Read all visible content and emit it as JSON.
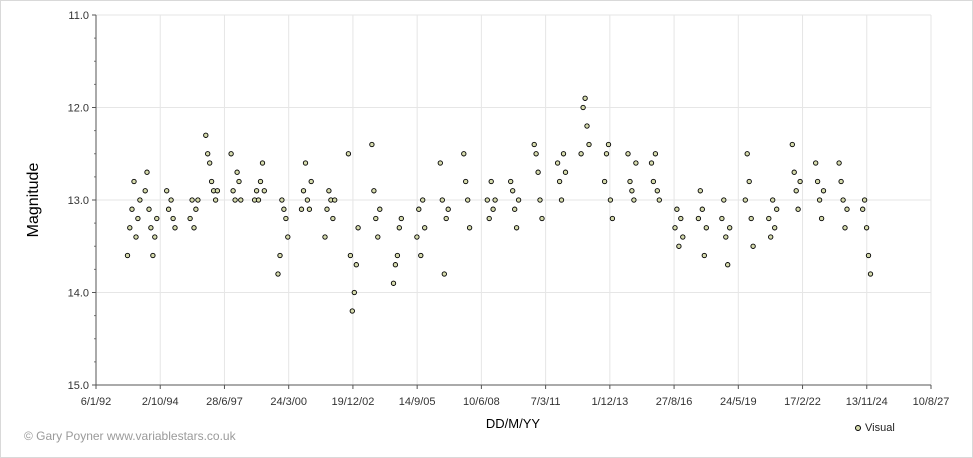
{
  "copyright": "© Gary Poyner www.variablestars.co.uk",
  "chart_data": {
    "type": "scatter",
    "title": "",
    "xlabel": "DD/M/YY",
    "ylabel": "Magnitude",
    "y_inverted": true,
    "ylim": [
      11.0,
      15.0
    ],
    "xlim": [
      "6/1/92",
      "10/8/27"
    ],
    "xticks": [
      "6/1/92",
      "2/10/94",
      "28/6/97",
      "24/3/00",
      "19/12/02",
      "14/9/05",
      "10/6/08",
      "7/3/11",
      "1/12/13",
      "27/8/16",
      "24/5/19",
      "17/2/22",
      "13/11/24",
      "10/8/27"
    ],
    "yticks": [
      "11.0",
      "12.0",
      "13.0",
      "14.0",
      "15.0"
    ],
    "grid": true,
    "legend_position": "bottom-right",
    "marker_color": "#d7dcae",
    "series": [
      {
        "name": "Visual",
        "points": [
          {
            "x": "1993-05-10",
            "y": 13.6
          },
          {
            "x": "1993-06-15",
            "y": 13.3
          },
          {
            "x": "1993-07-20",
            "y": 13.1
          },
          {
            "x": "1993-08-20",
            "y": 12.8
          },
          {
            "x": "1993-09-20",
            "y": 13.4
          },
          {
            "x": "1993-10-20",
            "y": 13.2
          },
          {
            "x": "1993-11-20",
            "y": 13.0
          },
          {
            "x": "1994-02-10",
            "y": 12.9
          },
          {
            "x": "1994-03-10",
            "y": 12.7
          },
          {
            "x": "1994-04-10",
            "y": 13.1
          },
          {
            "x": "1994-05-10",
            "y": 13.3
          },
          {
            "x": "1994-06-10",
            "y": 13.6
          },
          {
            "x": "1994-07-10",
            "y": 13.4
          },
          {
            "x": "1994-08-10",
            "y": 13.2
          },
          {
            "x": "1995-01-10",
            "y": 12.9
          },
          {
            "x": "1995-02-10",
            "y": 13.1
          },
          {
            "x": "1995-03-20",
            "y": 13.0
          },
          {
            "x": "1995-04-20",
            "y": 13.2
          },
          {
            "x": "1995-05-20",
            "y": 13.3
          },
          {
            "x": "1996-01-10",
            "y": 13.2
          },
          {
            "x": "1996-02-10",
            "y": 13.0
          },
          {
            "x": "1996-03-10",
            "y": 13.3
          },
          {
            "x": "1996-04-10",
            "y": 13.1
          },
          {
            "x": "1996-05-10",
            "y": 13.0
          },
          {
            "x": "1996-09-10",
            "y": 12.3
          },
          {
            "x": "1996-10-10",
            "y": 12.5
          },
          {
            "x": "1996-11-10",
            "y": 12.6
          },
          {
            "x": "1996-12-10",
            "y": 12.8
          },
          {
            "x": "1997-01-10",
            "y": 12.9
          },
          {
            "x": "1997-02-10",
            "y": 13.0
          },
          {
            "x": "1997-03-10",
            "y": 12.9
          },
          {
            "x": "1997-10-10",
            "y": 12.5
          },
          {
            "x": "1997-11-10",
            "y": 12.9
          },
          {
            "x": "1997-12-10",
            "y": 13.0
          },
          {
            "x": "1998-01-10",
            "y": 12.7
          },
          {
            "x": "1998-02-10",
            "y": 12.8
          },
          {
            "x": "1998-03-10",
            "y": 13.0
          },
          {
            "x": "1998-10-10",
            "y": 13.0
          },
          {
            "x": "1998-11-10",
            "y": 12.9
          },
          {
            "x": "1998-12-10",
            "y": 13.0
          },
          {
            "x": "1999-01-10",
            "y": 12.8
          },
          {
            "x": "1999-02-10",
            "y": 12.6
          },
          {
            "x": "1999-03-10",
            "y": 12.9
          },
          {
            "x": "1999-10-10",
            "y": 13.8
          },
          {
            "x": "1999-11-10",
            "y": 13.6
          },
          {
            "x": "1999-12-10",
            "y": 13.0
          },
          {
            "x": "2000-01-10",
            "y": 13.1
          },
          {
            "x": "2000-02-10",
            "y": 13.2
          },
          {
            "x": "2000-03-10",
            "y": 13.4
          },
          {
            "x": "2000-10-10",
            "y": 13.1
          },
          {
            "x": "2000-11-10",
            "y": 12.9
          },
          {
            "x": "2000-12-10",
            "y": 12.6
          },
          {
            "x": "2001-01-10",
            "y": 13.0
          },
          {
            "x": "2001-02-10",
            "y": 13.1
          },
          {
            "x": "2001-03-10",
            "y": 12.8
          },
          {
            "x": "2001-10-10",
            "y": 13.4
          },
          {
            "x": "2001-11-10",
            "y": 13.1
          },
          {
            "x": "2001-12-10",
            "y": 12.9
          },
          {
            "x": "2002-01-10",
            "y": 13.0
          },
          {
            "x": "2002-02-10",
            "y": 13.2
          },
          {
            "x": "2002-03-10",
            "y": 13.0
          },
          {
            "x": "2002-10-10",
            "y": 12.5
          },
          {
            "x": "2002-11-10",
            "y": 13.6
          },
          {
            "x": "2002-12-10",
            "y": 14.2
          },
          {
            "x": "2003-01-10",
            "y": 14.0
          },
          {
            "x": "2003-02-10",
            "y": 13.7
          },
          {
            "x": "2003-03-10",
            "y": 13.3
          },
          {
            "x": "2003-10-10",
            "y": 12.4
          },
          {
            "x": "2003-11-10",
            "y": 12.9
          },
          {
            "x": "2003-12-10",
            "y": 13.2
          },
          {
            "x": "2004-01-10",
            "y": 13.4
          },
          {
            "x": "2004-02-10",
            "y": 13.1
          },
          {
            "x": "2004-09-10",
            "y": 13.9
          },
          {
            "x": "2004-10-10",
            "y": 13.7
          },
          {
            "x": "2004-11-10",
            "y": 13.6
          },
          {
            "x": "2004-12-10",
            "y": 13.3
          },
          {
            "x": "2005-01-10",
            "y": 13.2
          },
          {
            "x": "2005-09-10",
            "y": 13.4
          },
          {
            "x": "2005-10-10",
            "y": 13.1
          },
          {
            "x": "2005-11-10",
            "y": 13.6
          },
          {
            "x": "2005-12-10",
            "y": 13.0
          },
          {
            "x": "2006-01-10",
            "y": 13.3
          },
          {
            "x": "2006-09-10",
            "y": 12.6
          },
          {
            "x": "2006-10-10",
            "y": 13.0
          },
          {
            "x": "2006-11-10",
            "y": 13.8
          },
          {
            "x": "2006-12-10",
            "y": 13.2
          },
          {
            "x": "2007-01-10",
            "y": 13.1
          },
          {
            "x": "2007-09-10",
            "y": 12.5
          },
          {
            "x": "2007-10-10",
            "y": 12.8
          },
          {
            "x": "2007-11-10",
            "y": 13.0
          },
          {
            "x": "2007-12-10",
            "y": 13.3
          },
          {
            "x": "2008-09-10",
            "y": 13.0
          },
          {
            "x": "2008-10-10",
            "y": 13.2
          },
          {
            "x": "2008-11-10",
            "y": 12.8
          },
          {
            "x": "2008-12-10",
            "y": 13.1
          },
          {
            "x": "2009-01-10",
            "y": 13.0
          },
          {
            "x": "2009-09-10",
            "y": 12.8
          },
          {
            "x": "2009-10-10",
            "y": 12.9
          },
          {
            "x": "2009-11-10",
            "y": 13.1
          },
          {
            "x": "2009-12-10",
            "y": 13.3
          },
          {
            "x": "2010-01-10",
            "y": 13.0
          },
          {
            "x": "2010-09-10",
            "y": 12.4
          },
          {
            "x": "2010-10-10",
            "y": 12.5
          },
          {
            "x": "2010-11-10",
            "y": 12.7
          },
          {
            "x": "2010-12-10",
            "y": 13.0
          },
          {
            "x": "2011-01-10",
            "y": 13.2
          },
          {
            "x": "2011-09-10",
            "y": 12.6
          },
          {
            "x": "2011-10-10",
            "y": 12.8
          },
          {
            "x": "2011-11-10",
            "y": 13.0
          },
          {
            "x": "2011-12-10",
            "y": 12.5
          },
          {
            "x": "2012-01-10",
            "y": 12.7
          },
          {
            "x": "2012-09-10",
            "y": 12.5
          },
          {
            "x": "2012-10-10",
            "y": 12.0
          },
          {
            "x": "2012-11-10",
            "y": 11.9
          },
          {
            "x": "2012-12-10",
            "y": 12.2
          },
          {
            "x": "2013-01-10",
            "y": 12.4
          },
          {
            "x": "2013-09-10",
            "y": 12.8
          },
          {
            "x": "2013-10-10",
            "y": 12.5
          },
          {
            "x": "2013-11-10",
            "y": 12.4
          },
          {
            "x": "2013-12-10",
            "y": 13.0
          },
          {
            "x": "2014-01-10",
            "y": 13.2
          },
          {
            "x": "2014-09-10",
            "y": 12.5
          },
          {
            "x": "2014-10-10",
            "y": 12.8
          },
          {
            "x": "2014-11-10",
            "y": 12.9
          },
          {
            "x": "2014-12-10",
            "y": 13.0
          },
          {
            "x": "2015-01-10",
            "y": 12.6
          },
          {
            "x": "2015-09-10",
            "y": 12.6
          },
          {
            "x": "2015-10-10",
            "y": 12.8
          },
          {
            "x": "2015-11-10",
            "y": 12.5
          },
          {
            "x": "2015-12-10",
            "y": 12.9
          },
          {
            "x": "2016-01-10",
            "y": 13.0
          },
          {
            "x": "2016-09-10",
            "y": 13.3
          },
          {
            "x": "2016-10-10",
            "y": 13.1
          },
          {
            "x": "2016-11-10",
            "y": 13.5
          },
          {
            "x": "2016-12-10",
            "y": 13.2
          },
          {
            "x": "2017-01-10",
            "y": 13.4
          },
          {
            "x": "2017-09-10",
            "y": 13.2
          },
          {
            "x": "2017-10-10",
            "y": 12.9
          },
          {
            "x": "2017-11-10",
            "y": 13.1
          },
          {
            "x": "2017-12-10",
            "y": 13.6
          },
          {
            "x": "2018-01-10",
            "y": 13.3
          },
          {
            "x": "2018-09-10",
            "y": 13.2
          },
          {
            "x": "2018-10-10",
            "y": 13.0
          },
          {
            "x": "2018-11-10",
            "y": 13.4
          },
          {
            "x": "2018-12-10",
            "y": 13.7
          },
          {
            "x": "2019-01-10",
            "y": 13.3
          },
          {
            "x": "2019-09-10",
            "y": 13.0
          },
          {
            "x": "2019-10-10",
            "y": 12.5
          },
          {
            "x": "2019-11-10",
            "y": 12.8
          },
          {
            "x": "2019-12-10",
            "y": 13.2
          },
          {
            "x": "2020-01-10",
            "y": 13.5
          },
          {
            "x": "2020-09-10",
            "y": 13.2
          },
          {
            "x": "2020-10-10",
            "y": 13.4
          },
          {
            "x": "2020-11-10",
            "y": 13.0
          },
          {
            "x": "2020-12-10",
            "y": 13.3
          },
          {
            "x": "2021-01-10",
            "y": 13.1
          },
          {
            "x": "2021-09-10",
            "y": 12.4
          },
          {
            "x": "2021-10-10",
            "y": 12.7
          },
          {
            "x": "2021-11-10",
            "y": 12.9
          },
          {
            "x": "2021-12-10",
            "y": 13.1
          },
          {
            "x": "2022-01-10",
            "y": 12.8
          },
          {
            "x": "2022-09-10",
            "y": 12.6
          },
          {
            "x": "2022-10-10",
            "y": 12.8
          },
          {
            "x": "2022-11-10",
            "y": 13.0
          },
          {
            "x": "2022-12-10",
            "y": 13.2
          },
          {
            "x": "2023-01-10",
            "y": 12.9
          },
          {
            "x": "2023-09-10",
            "y": 12.6
          },
          {
            "x": "2023-10-10",
            "y": 12.8
          },
          {
            "x": "2023-11-10",
            "y": 13.0
          },
          {
            "x": "2023-12-10",
            "y": 13.3
          },
          {
            "x": "2024-01-10",
            "y": 13.1
          },
          {
            "x": "2024-09-10",
            "y": 13.1
          },
          {
            "x": "2024-10-10",
            "y": 13.0
          },
          {
            "x": "2024-11-10",
            "y": 13.3
          },
          {
            "x": "2024-12-10",
            "y": 13.6
          },
          {
            "x": "2025-01-10",
            "y": 13.8
          }
        ]
      }
    ]
  }
}
